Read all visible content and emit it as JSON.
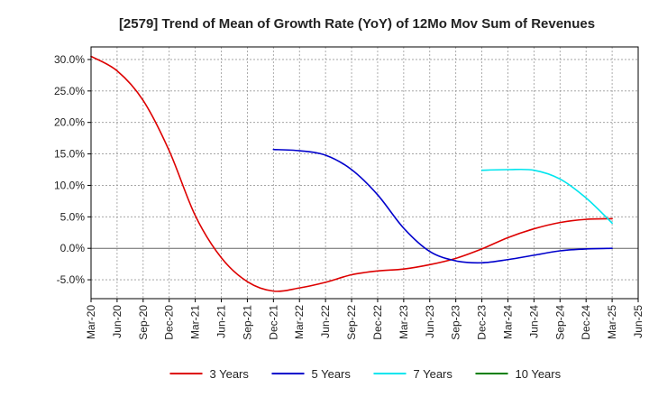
{
  "chart_data": {
    "type": "line",
    "title": "[2579]  Trend of Mean of Growth Rate (YoY) of 12Mo Mov Sum of Revenues",
    "xlabel": "",
    "ylabel": "",
    "ylim": [
      -8,
      32
    ],
    "yticks": [
      -5,
      0,
      5,
      10,
      15,
      20,
      25,
      30
    ],
    "ytick_labels": [
      "-5.0%",
      "0.0%",
      "5.0%",
      "10.0%",
      "15.0%",
      "20.0%",
      "25.0%",
      "30.0%"
    ],
    "x_categories": [
      "Mar-20",
      "Jun-20",
      "Sep-20",
      "Dec-20",
      "Mar-21",
      "Jun-21",
      "Sep-21",
      "Dec-21",
      "Mar-22",
      "Jun-22",
      "Sep-22",
      "Dec-22",
      "Mar-23",
      "Jun-23",
      "Sep-23",
      "Dec-23",
      "Mar-24",
      "Jun-24",
      "Sep-24",
      "Dec-24",
      "Mar-25",
      "Jun-25"
    ],
    "grid": true,
    "legend_position": "bottom",
    "series": [
      {
        "name": "3 Years",
        "color": "#dd0000",
        "x": [
          0,
          1,
          2,
          3,
          4,
          5,
          6,
          7,
          8,
          9,
          10,
          11,
          12,
          13,
          14,
          15,
          16,
          17,
          18,
          19,
          20
        ],
        "values": [
          30.5,
          28.2,
          23.5,
          15.5,
          5.2,
          -1.5,
          -5.3,
          -6.8,
          -6.3,
          -5.4,
          -4.2,
          -3.6,
          -3.3,
          -2.6,
          -1.6,
          -0.1,
          1.7,
          3.1,
          4.1,
          4.6,
          4.7
        ]
      },
      {
        "name": "5 Years",
        "color": "#0000cc",
        "x": [
          7,
          8,
          9,
          10,
          11,
          12,
          13,
          14,
          15,
          16,
          17,
          18,
          19,
          20
        ],
        "values": [
          15.7,
          15.5,
          14.8,
          12.5,
          8.5,
          3.2,
          -0.5,
          -2.0,
          -2.3,
          -1.8,
          -1.1,
          -0.4,
          -0.1,
          0.0
        ]
      },
      {
        "name": "7 Years",
        "color": "#00e5ee",
        "x": [
          15,
          16,
          17,
          18,
          19,
          20
        ],
        "values": [
          12.4,
          12.5,
          12.4,
          11.0,
          8.0,
          4.0
        ]
      },
      {
        "name": "10 Years",
        "color": "#008000",
        "x": [],
        "values": []
      }
    ]
  }
}
